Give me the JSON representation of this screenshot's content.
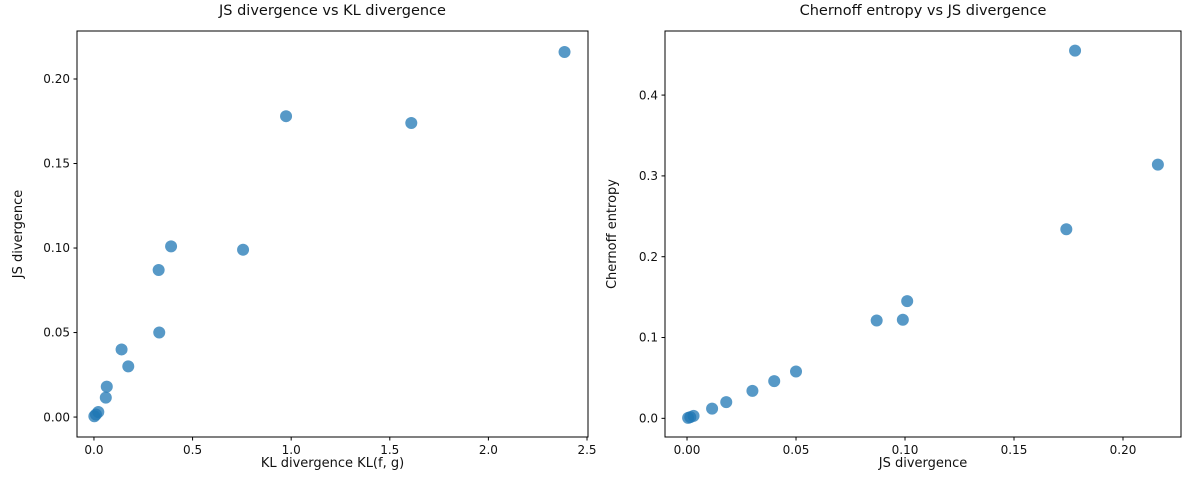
{
  "figure": {
    "background": "#ffffff",
    "axis_color": "#000000",
    "text_color": "#111111",
    "marker_color": "#1f77b4",
    "marker_opacity": 0.75,
    "marker_radius": 6
  },
  "chart_data": [
    {
      "type": "scatter",
      "title": "JS divergence vs KL divergence",
      "xlabel": "KL divergence KL(f, g)",
      "ylabel": "JS divergence",
      "xlim": [
        -0.086,
        2.505
      ],
      "ylim": [
        -0.0118,
        0.2284
      ],
      "grid": false,
      "xticks": {
        "values": [
          0,
          0.5,
          1.0,
          1.5,
          2.0,
          2.5
        ],
        "labels": [
          "0.0",
          "0.5",
          "1.0",
          "1.5",
          "2.0",
          "2.5"
        ]
      },
      "yticks": {
        "values": [
          0,
          0.05,
          0.1,
          0.15,
          0.2
        ],
        "labels": [
          "0.00",
          "0.05",
          "0.10",
          "0.15",
          "0.20"
        ]
      },
      "points": [
        [
          0.002,
          0.0005
        ],
        [
          0.01,
          0.0015
        ],
        [
          0.022,
          0.003
        ],
        [
          0.06,
          0.0115
        ],
        [
          0.065,
          0.018
        ],
        [
          0.14,
          0.04
        ],
        [
          0.174,
          0.03
        ],
        [
          0.328,
          0.087
        ],
        [
          0.331,
          0.05
        ],
        [
          0.391,
          0.101
        ],
        [
          0.756,
          0.099
        ],
        [
          0.974,
          0.178
        ],
        [
          1.609,
          0.174
        ],
        [
          2.386,
          0.216
        ]
      ]
    },
    {
      "type": "scatter",
      "title": "Chernoff entropy vs JS divergence",
      "xlabel": "JS divergence",
      "ylabel": "Chernoff entropy",
      "xlim": [
        -0.0101,
        0.2266
      ],
      "ylim": [
        -0.0231,
        0.4793
      ],
      "grid": false,
      "xticks": {
        "values": [
          0,
          0.05,
          0.1,
          0.15,
          0.2
        ],
        "labels": [
          "0.00",
          "0.05",
          "0.10",
          "0.15",
          "0.20"
        ]
      },
      "yticks": {
        "values": [
          0,
          0.1,
          0.2,
          0.3,
          0.4
        ],
        "labels": [
          "0.0",
          "0.1",
          "0.2",
          "0.3",
          "0.4"
        ]
      },
      "points": [
        [
          0.0005,
          0.0005
        ],
        [
          0.0015,
          0.0015
        ],
        [
          0.003,
          0.003
        ],
        [
          0.0115,
          0.012
        ],
        [
          0.018,
          0.02
        ],
        [
          0.03,
          0.034
        ],
        [
          0.04,
          0.046
        ],
        [
          0.05,
          0.058
        ],
        [
          0.087,
          0.121
        ],
        [
          0.099,
          0.122
        ],
        [
          0.101,
          0.145
        ],
        [
          0.174,
          0.234
        ],
        [
          0.178,
          0.455
        ],
        [
          0.216,
          0.314
        ]
      ]
    }
  ]
}
